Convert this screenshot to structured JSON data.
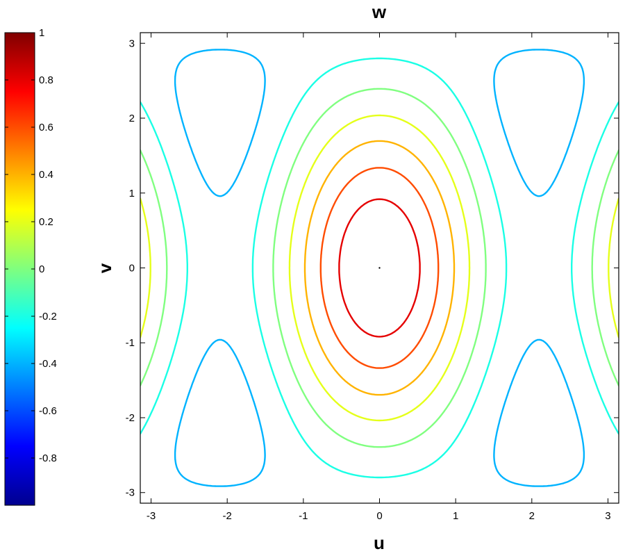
{
  "chart_data": {
    "type": "contour",
    "title": "w",
    "xlabel": "u",
    "ylabel": "v",
    "xlim": [
      -3.1416,
      3.1416
    ],
    "ylim": [
      -3.1416,
      3.1416
    ],
    "xticks": [
      "-3",
      "-2",
      "-1",
      "0",
      "1",
      "2",
      "3"
    ],
    "yticks": [
      "3",
      "2",
      "1",
      "0",
      "-1",
      "-2",
      "-3"
    ],
    "grid": false,
    "contour_levels": [
      -0.8,
      -0.6,
      -0.4,
      -0.2,
      0,
      0.2,
      0.4,
      0.6,
      0.8
    ],
    "center_extrema": [
      {
        "u": 0,
        "v": 0,
        "value": 1
      },
      {
        "u": -2.094,
        "v": 3.1416,
        "value": -1
      },
      {
        "u": 2.094,
        "v": 3.1416,
        "value": -1
      },
      {
        "u": -2.094,
        "v": -3.1416,
        "value": -1
      },
      {
        "u": 2.094,
        "v": -3.1416,
        "value": -1
      }
    ],
    "saddle_points": [
      {
        "u": -2.094,
        "v": 0,
        "value": 0
      },
      {
        "u": 2.094,
        "v": 0,
        "value": 0
      }
    ],
    "colorbar": {
      "colormap": "jet",
      "range": [
        -1,
        1
      ],
      "ticks": [
        "1",
        "0.8",
        "0.6",
        "0.4",
        "0.2",
        "0",
        "-0.2",
        "-0.4",
        "-0.6",
        "-0.8"
      ]
    }
  }
}
